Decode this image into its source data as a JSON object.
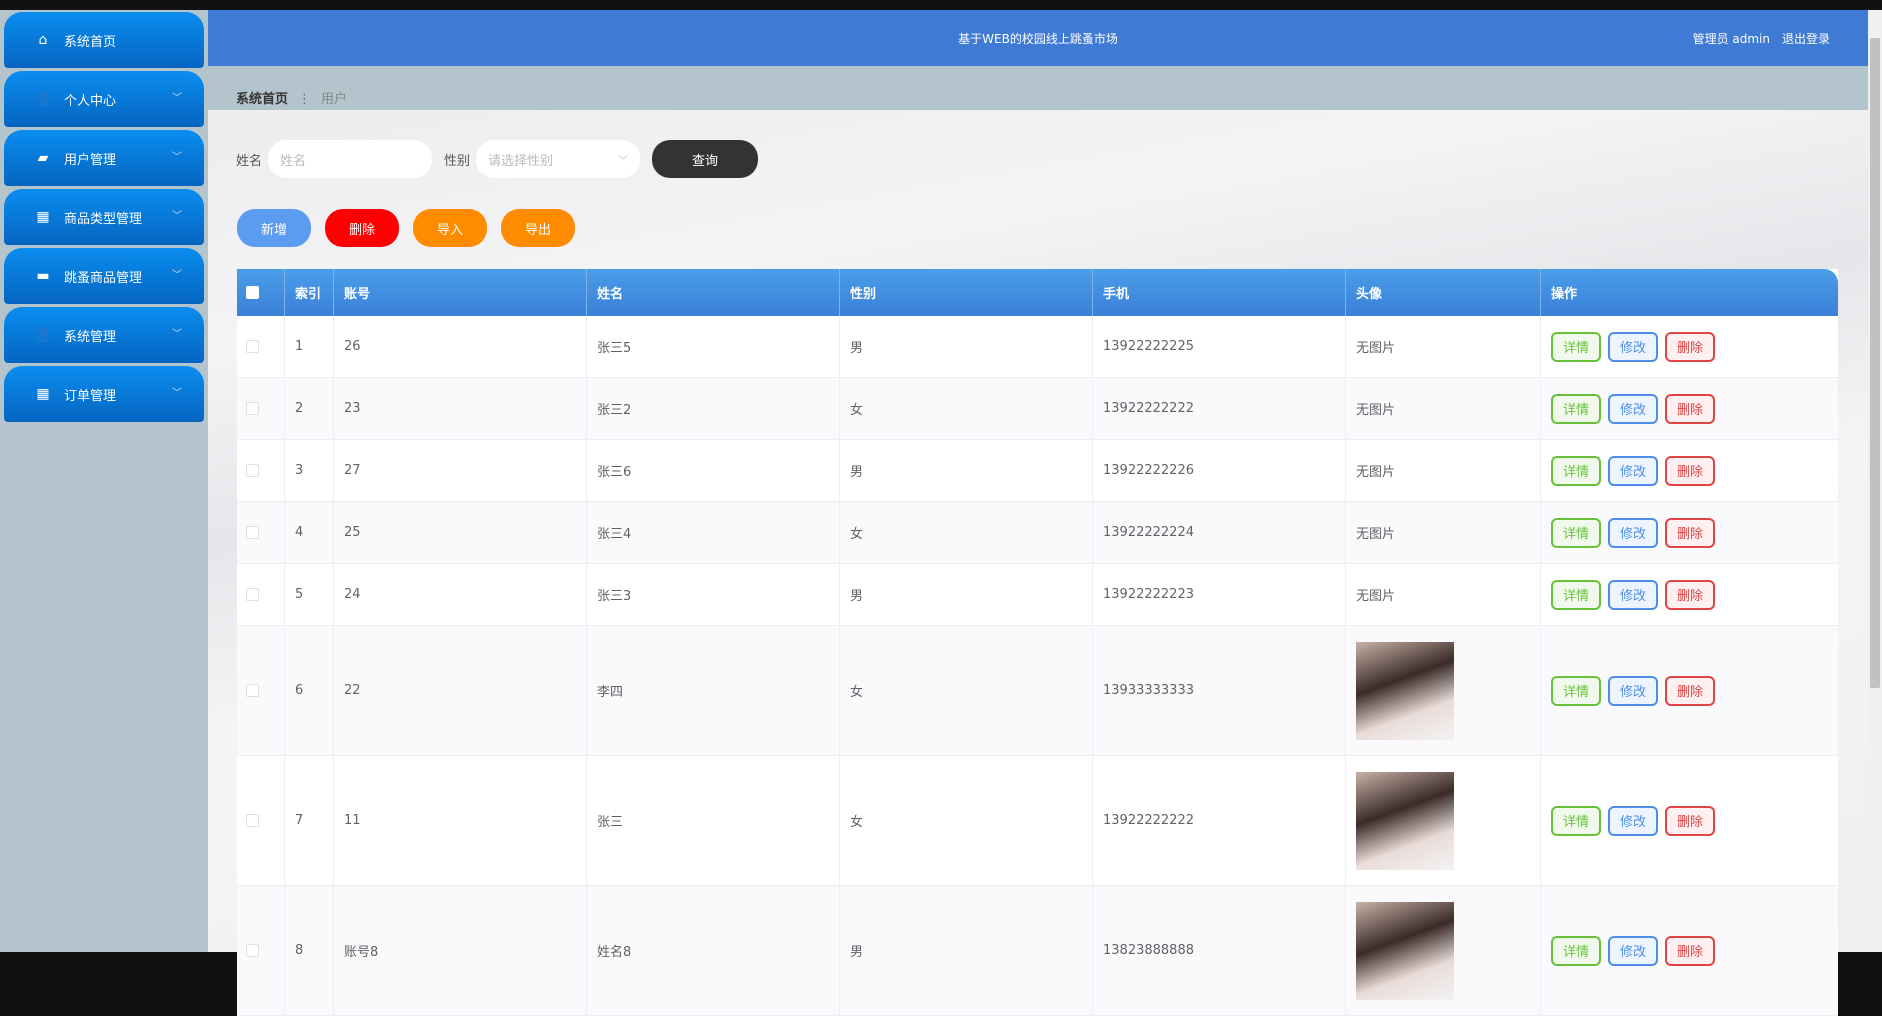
{
  "header": {
    "title": "基于WEB的校园线上跳蚤市场",
    "user": "管理员 admin",
    "logout": "退出登录"
  },
  "sidebar": {
    "items": [
      {
        "label": "系统首页",
        "icon": "home-icon",
        "chev": false
      },
      {
        "label": "个人中心",
        "icon": "user-icon",
        "chev": true
      },
      {
        "label": "用户管理",
        "icon": "users-icon",
        "chev": true
      },
      {
        "label": "商品类型管理",
        "icon": "grid-icon",
        "chev": true
      },
      {
        "label": "跳蚤商品管理",
        "icon": "message-icon",
        "chev": true
      },
      {
        "label": "系统管理",
        "icon": "user-icon",
        "chev": true
      },
      {
        "label": "订单管理",
        "icon": "grid-icon",
        "chev": true
      }
    ]
  },
  "breadcrumb": {
    "home": "系统首页",
    "current": "用户"
  },
  "search": {
    "name_label": "姓名",
    "name_placeholder": "姓名",
    "gender_label": "性别",
    "gender_placeholder": "请选择性别",
    "query": "查询"
  },
  "actions": {
    "add": "新增",
    "delete": "删除",
    "import": "导入",
    "export": "导出"
  },
  "colors": {
    "header": "#3f7ad4",
    "add": "#5b9cf0",
    "delete": "#ff0000",
    "import": "#ff8c00",
    "query": "#333333"
  },
  "table": {
    "columns": [
      "索引",
      "账号",
      "姓名",
      "性别",
      "手机",
      "头像",
      "操作"
    ],
    "row_actions": {
      "detail": "详情",
      "edit": "修改",
      "delete": "删除"
    },
    "rows": [
      {
        "index": "1",
        "account": "26",
        "name": "张三5",
        "gender": "男",
        "phone": "13922222225",
        "avatar": "无图片"
      },
      {
        "index": "2",
        "account": "23",
        "name": "张三2",
        "gender": "女",
        "phone": "13922222222",
        "avatar": "无图片"
      },
      {
        "index": "3",
        "account": "27",
        "name": "张三6",
        "gender": "男",
        "phone": "13922222226",
        "avatar": "无图片"
      },
      {
        "index": "4",
        "account": "25",
        "name": "张三4",
        "gender": "女",
        "phone": "13922222224",
        "avatar": "无图片"
      },
      {
        "index": "5",
        "account": "24",
        "name": "张三3",
        "gender": "男",
        "phone": "13922222223",
        "avatar": "无图片"
      },
      {
        "index": "6",
        "account": "22",
        "name": "李四",
        "gender": "女",
        "phone": "13933333333",
        "avatar": null
      },
      {
        "index": "7",
        "account": "11",
        "name": "张三",
        "gender": "女",
        "phone": "13922222222",
        "avatar": null
      },
      {
        "index": "8",
        "account": "账号8",
        "name": "姓名8",
        "gender": "男",
        "phone": "13823888888",
        "avatar": null
      }
    ]
  }
}
